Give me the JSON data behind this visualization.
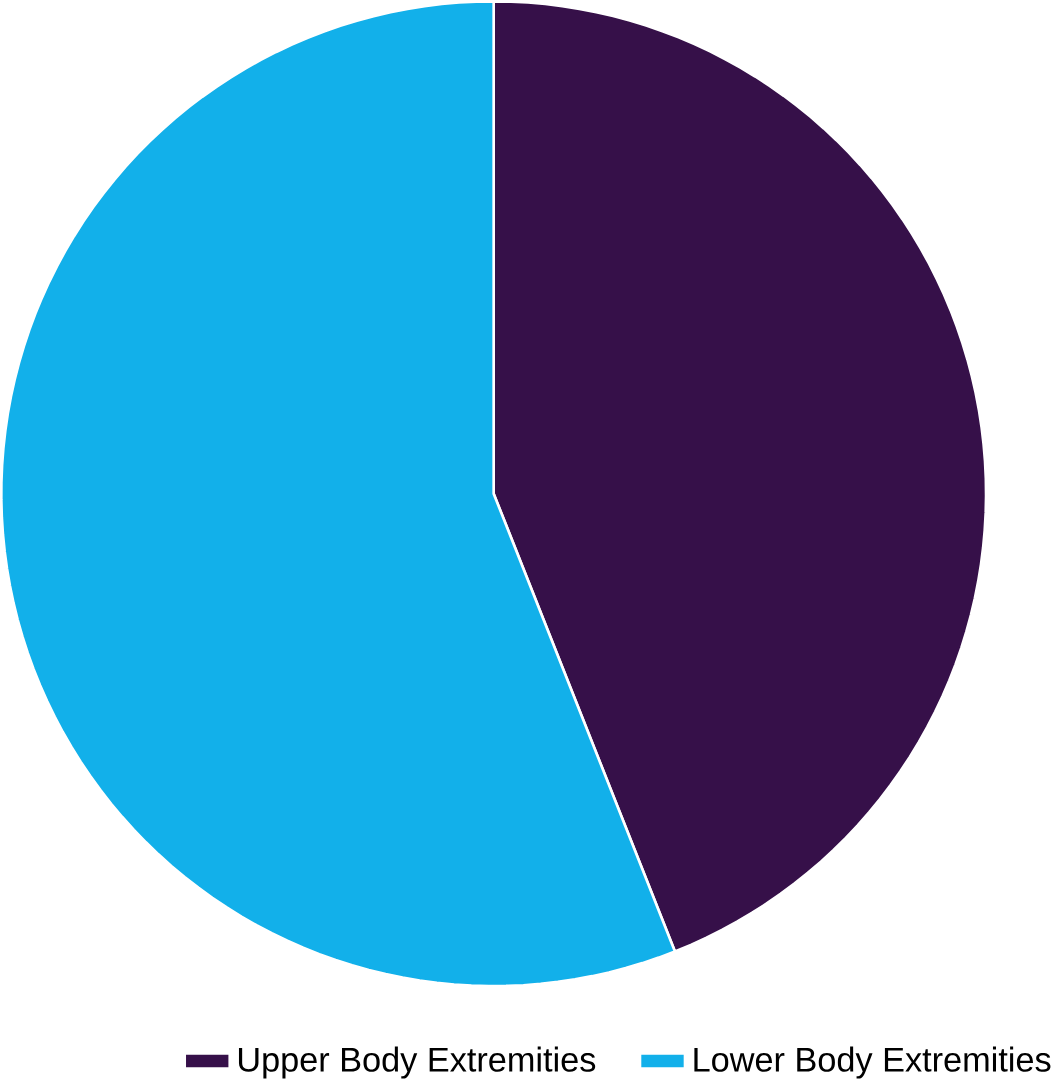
{
  "chart_data": {
    "type": "pie",
    "categories": [
      "Upper Body Extremities",
      "Lower Body Extremities"
    ],
    "values": [
      44,
      56
    ],
    "colors": [
      "#361049",
      "#12b0ea"
    ],
    "legend": "bottom"
  }
}
